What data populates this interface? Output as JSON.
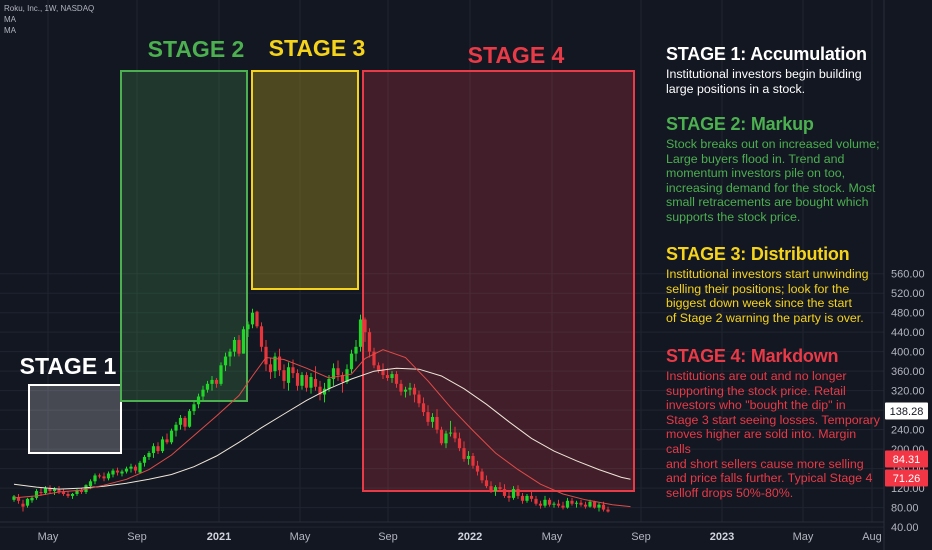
{
  "legend": {
    "symbol": "Roku, Inc., 1W, NASDAQ",
    "ma1": "MA",
    "ma2": "MA"
  },
  "colors": {
    "background": "#131722",
    "up": "#22d629",
    "down": "#e8353b",
    "ma_fast": "#e04b47",
    "ma_slow": "#f0e6d8",
    "stage1": "#ffffff",
    "stage2": "#4caf50",
    "stage3": "#f5d31b",
    "stage4": "#e83a47"
  },
  "stages": [
    {
      "label": "STAGE 1",
      "title": "STAGE 1: Accumulation",
      "text": [
        "Institutional investors begin building",
        "large positions in a stock."
      ]
    },
    {
      "label": "STAGE 2",
      "title": "STAGE 2: Markup",
      "text": [
        "Stock breaks out on increased volume;",
        "Large buyers flood in. Trend and",
        "momentum investors pile on too,",
        "increasing demand for the stock. Most",
        "small retracements are bought which",
        "supports the stock price."
      ]
    },
    {
      "label": "STAGE 3",
      "title": "STAGE 3: Distribution",
      "text": [
        "Institutional investors start unwinding",
        "selling their positions; look for the",
        "biggest down week since the start",
        "of Stage 2 warning the party is over."
      ]
    },
    {
      "label": "STAGE 4",
      "title": "STAGE 4: Markdown",
      "text": [
        "Institutions are out and no longer",
        "supporting the stock price. Retail",
        "investors who \"bought the dip\" in",
        "Stage 3 start seeing losses. Temporary",
        "moves higher are sold into. Margin calls",
        "and short sellers cause more selling",
        "and price falls further. Typical Stage 4",
        "selloff drops 50%-80%."
      ]
    }
  ],
  "chart_data": {
    "type": "candlestick",
    "symbol": "Roku, Inc., 1W, NASDAQ",
    "y_ticks": [
      "40.00",
      "80.00",
      "120.00",
      "160.00",
      "200.00",
      "240.00",
      "280.00",
      "320.00",
      "360.00",
      "400.00",
      "440.00",
      "480.00",
      "520.00",
      "560.00"
    ],
    "ylim": [
      40,
      560
    ],
    "x_ticks": [
      "May",
      "Sep",
      "2021",
      "May",
      "Sep",
      "2022",
      "May",
      "Sep",
      "2023",
      "May",
      "Aug"
    ],
    "price_labels": [
      {
        "value": "138.28",
        "style": "ma-slow"
      },
      {
        "value": "84.31",
        "style": "down"
      },
      {
        "value": "71.26",
        "style": "down"
      }
    ],
    "candles": [
      [
        96,
        106,
        92,
        103
      ],
      [
        101,
        108,
        88,
        94
      ],
      [
        88,
        96,
        72,
        82
      ],
      [
        84,
        100,
        80,
        98
      ],
      [
        95,
        104,
        90,
        100
      ],
      [
        100,
        118,
        96,
        114
      ],
      [
        112,
        122,
        104,
        110
      ],
      [
        110,
        124,
        106,
        120
      ],
      [
        120,
        126,
        110,
        114
      ],
      [
        114,
        122,
        106,
        118
      ],
      [
        116,
        124,
        108,
        112
      ],
      [
        112,
        118,
        104,
        108
      ],
      [
        108,
        114,
        100,
        104
      ],
      [
        104,
        110,
        98,
        108
      ],
      [
        108,
        118,
        104,
        116
      ],
      [
        116,
        120,
        108,
        112
      ],
      [
        112,
        128,
        108,
        126
      ],
      [
        124,
        138,
        118,
        134
      ],
      [
        134,
        150,
        128,
        146
      ],
      [
        146,
        150,
        140,
        144
      ],
      [
        144,
        152,
        134,
        140
      ],
      [
        140,
        154,
        136,
        150
      ],
      [
        148,
        160,
        142,
        156
      ],
      [
        156,
        162,
        146,
        152
      ],
      [
        150,
        158,
        144,
        154
      ],
      [
        154,
        164,
        150,
        160
      ],
      [
        160,
        170,
        152,
        164
      ],
      [
        164,
        168,
        150,
        156
      ],
      [
        152,
        176,
        150,
        172
      ],
      [
        172,
        188,
        164,
        184
      ],
      [
        184,
        196,
        178,
        192
      ],
      [
        192,
        212,
        182,
        206
      ],
      [
        206,
        214,
        190,
        196
      ],
      [
        196,
        226,
        192,
        220
      ],
      [
        220,
        232,
        210,
        214
      ],
      [
        214,
        242,
        210,
        238
      ],
      [
        238,
        256,
        226,
        250
      ],
      [
        250,
        270,
        240,
        264
      ],
      [
        264,
        268,
        238,
        246
      ],
      [
        246,
        282,
        244,
        278
      ],
      [
        278,
        300,
        270,
        292
      ],
      [
        292,
        314,
        284,
        308
      ],
      [
        308,
        330,
        298,
        322
      ],
      [
        322,
        340,
        316,
        334
      ],
      [
        334,
        350,
        320,
        342
      ],
      [
        342,
        346,
        326,
        334
      ],
      [
        334,
        378,
        330,
        372
      ],
      [
        372,
        398,
        360,
        390
      ],
      [
        390,
        406,
        370,
        400
      ],
      [
        400,
        430,
        390,
        424
      ],
      [
        424,
        434,
        390,
        396
      ],
      [
        396,
        452,
        396,
        446
      ],
      [
        446,
        462,
        430,
        456
      ],
      [
        456,
        488,
        448,
        480
      ],
      [
        482,
        484,
        448,
        452
      ],
      [
        452,
        460,
        400,
        410
      ],
      [
        410,
        424,
        360,
        374
      ],
      [
        374,
        388,
        344,
        358
      ],
      [
        360,
        398,
        346,
        390
      ],
      [
        390,
        406,
        350,
        362
      ],
      [
        362,
        374,
        324,
        340
      ],
      [
        336,
        378,
        320,
        368
      ],
      [
        368,
        384,
        346,
        356
      ],
      [
        356,
        364,
        320,
        330
      ],
      [
        330,
        358,
        322,
        352
      ],
      [
        352,
        358,
        318,
        326
      ],
      [
        326,
        356,
        314,
        348
      ],
      [
        344,
        370,
        320,
        328
      ],
      [
        328,
        340,
        300,
        312
      ],
      [
        312,
        336,
        296,
        324
      ],
      [
        324,
        352,
        318,
        344
      ],
      [
        344,
        376,
        330,
        366
      ],
      [
        366,
        382,
        340,
        352
      ],
      [
        352,
        358,
        316,
        338
      ],
      [
        338,
        374,
        334,
        364
      ],
      [
        364,
        404,
        356,
        396
      ],
      [
        396,
        424,
        380,
        410
      ],
      [
        410,
        476,
        400,
        466
      ],
      [
        466,
        470,
        420,
        440
      ],
      [
        440,
        448,
        388,
        400
      ],
      [
        400,
        408,
        366,
        372
      ],
      [
        372,
        378,
        356,
        362
      ],
      [
        362,
        376,
        344,
        352
      ],
      [
        352,
        366,
        340,
        346
      ],
      [
        346,
        360,
        336,
        354
      ],
      [
        354,
        360,
        326,
        334
      ],
      [
        334,
        342,
        310,
        318
      ],
      [
        318,
        328,
        306,
        322
      ],
      [
        322,
        336,
        310,
        326
      ],
      [
        326,
        334,
        296,
        312
      ],
      [
        312,
        320,
        286,
        294
      ],
      [
        294,
        306,
        268,
        276
      ],
      [
        276,
        290,
        248,
        256
      ],
      [
        256,
        274,
        244,
        266
      ],
      [
        266,
        282,
        232,
        240
      ],
      [
        240,
        246,
        208,
        212
      ],
      [
        212,
        238,
        202,
        232
      ],
      [
        232,
        258,
        226,
        234
      ],
      [
        234,
        246,
        214,
        222
      ],
      [
        222,
        234,
        196,
        202
      ],
      [
        202,
        216,
        174,
        180
      ],
      [
        180,
        196,
        168,
        186
      ],
      [
        186,
        192,
        160,
        166
      ],
      [
        166,
        176,
        146,
        154
      ],
      [
        154,
        160,
        130,
        136
      ],
      [
        136,
        146,
        120,
        124
      ],
      [
        124,
        134,
        110,
        114
      ],
      [
        114,
        126,
        104,
        122
      ],
      [
        122,
        132,
        112,
        118
      ],
      [
        118,
        128,
        100,
        104
      ],
      [
        104,
        112,
        92,
        100
      ],
      [
        100,
        124,
        96,
        118
      ],
      [
        118,
        126,
        98,
        104
      ],
      [
        104,
        110,
        88,
        94
      ],
      [
        94,
        108,
        90,
        104
      ],
      [
        104,
        112,
        92,
        98
      ],
      [
        98,
        104,
        84,
        88
      ],
      [
        88,
        94,
        78,
        84
      ],
      [
        84,
        104,
        80,
        96
      ],
      [
        96,
        100,
        82,
        86
      ],
      [
        86,
        92,
        80,
        88
      ],
      [
        88,
        96,
        80,
        84
      ],
      [
        84,
        92,
        76,
        80
      ],
      [
        80,
        100,
        78,
        94
      ],
      [
        94,
        100,
        84,
        88
      ],
      [
        88,
        94,
        80,
        90
      ],
      [
        90,
        96,
        82,
        86
      ],
      [
        86,
        92,
        78,
        82
      ],
      [
        82,
        96,
        80,
        92
      ],
      [
        92,
        94,
        78,
        80
      ],
      [
        80,
        90,
        72,
        86
      ],
      [
        86,
        92,
        72,
        76
      ],
      [
        76,
        82,
        70,
        72
      ]
    ],
    "ma_fast": [
      [
        0,
        100
      ],
      [
        5,
        104
      ],
      [
        10,
        112
      ],
      [
        15,
        116
      ],
      [
        20,
        126
      ],
      [
        25,
        138
      ],
      [
        30,
        158
      ],
      [
        35,
        188
      ],
      [
        40,
        228
      ],
      [
        45,
        268
      ],
      [
        50,
        310
      ],
      [
        53,
        350
      ],
      [
        56,
        388
      ],
      [
        60,
        384
      ],
      [
        65,
        366
      ],
      [
        70,
        346
      ],
      [
        75,
        354
      ],
      [
        78,
        386
      ],
      [
        82,
        404
      ],
      [
        87,
        388
      ],
      [
        92,
        340
      ],
      [
        97,
        286
      ],
      [
        102,
        238
      ],
      [
        107,
        192
      ],
      [
        112,
        158
      ],
      [
        117,
        128
      ],
      [
        122,
        108
      ],
      [
        127,
        96
      ],
      [
        133,
        86
      ],
      [
        137,
        82
      ]
    ],
    "ma_slow": [
      [
        0,
        128
      ],
      [
        5,
        122
      ],
      [
        10,
        118
      ],
      [
        15,
        120
      ],
      [
        20,
        124
      ],
      [
        25,
        130
      ],
      [
        30,
        138
      ],
      [
        35,
        148
      ],
      [
        40,
        164
      ],
      [
        45,
        186
      ],
      [
        50,
        214
      ],
      [
        55,
        244
      ],
      [
        60,
        272
      ],
      [
        65,
        300
      ],
      [
        70,
        324
      ],
      [
        75,
        344
      ],
      [
        80,
        360
      ],
      [
        85,
        366
      ],
      [
        90,
        364
      ],
      [
        95,
        350
      ],
      [
        100,
        324
      ],
      [
        105,
        292
      ],
      [
        110,
        256
      ],
      [
        115,
        222
      ],
      [
        120,
        196
      ],
      [
        125,
        176
      ],
      [
        130,
        158
      ],
      [
        135,
        142
      ],
      [
        137,
        138
      ]
    ]
  }
}
